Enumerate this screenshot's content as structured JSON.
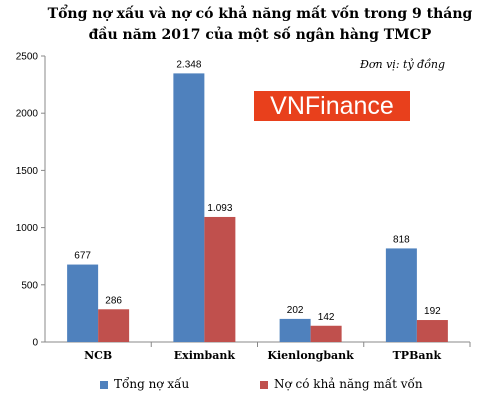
{
  "chart_data": {
    "type": "bar",
    "title": "Tổng nợ xấu và nợ có khả năng mất vốn trong 9 tháng đầu năm 2017 của một số ngân hàng TMCP",
    "unit_note": "Đơn vị: tỷ đồng",
    "watermark": "VNFinance",
    "categories": [
      "NCB",
      "Eximbank",
      "Kienlongbank",
      "TPBank"
    ],
    "series": [
      {
        "name": "Tổng nợ xấu",
        "values": [
          677,
          2348,
          202,
          818
        ],
        "labels": [
          "677",
          "2.348",
          "202",
          "818"
        ],
        "color": "#4f81bd"
      },
      {
        "name": "Nợ có khả năng mất vốn",
        "values": [
          286,
          1093,
          142,
          192
        ],
        "labels": [
          "286",
          "1.093",
          "142",
          "192"
        ],
        "color": "#c0504d"
      }
    ],
    "ylim": [
      0,
      2500
    ],
    "yticks": [
      "0",
      "500",
      "1000",
      "1500",
      "2000",
      "2500"
    ],
    "grid": false,
    "legend_position": "bottom"
  }
}
